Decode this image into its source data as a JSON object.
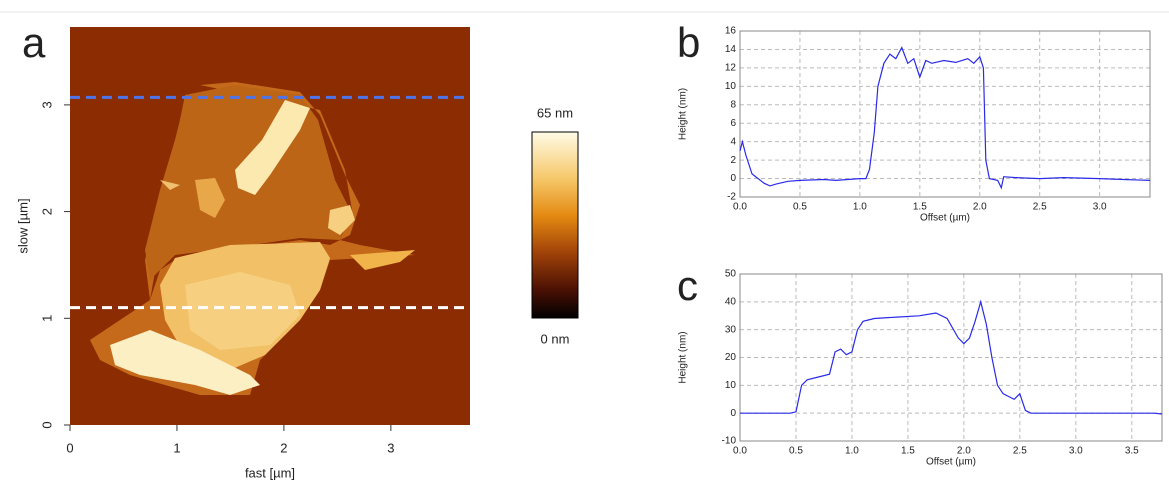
{
  "chart_data": [
    {
      "type": "image",
      "panel_label": "a",
      "x_label": "fast [µm]",
      "y_label": "slow [µm]",
      "xlim": [
        0,
        3.74
      ],
      "ylim": [
        0,
        3.73
      ],
      "xticks": [
        0,
        1,
        2,
        3
      ],
      "yticks": [
        0,
        1,
        2,
        3
      ],
      "colorbar_labels": [
        "65 nm",
        "0 nm"
      ],
      "profile_lines": [
        {
          "y": 3.07,
          "color": "#4f74e8"
        },
        {
          "y": 1.1,
          "color": "#ffffff"
        }
      ]
    },
    {
      "type": "line",
      "panel_label": "b",
      "x_label": "Offset (µm)",
      "y_label": "Height (nm)",
      "grid": true,
      "xlim": [
        0,
        3.42
      ],
      "ylim": [
        -2,
        16
      ],
      "xticks": [
        {
          "value": 0,
          "label": "0.0"
        },
        0.5,
        {
          "value": 1,
          "label": "1.0"
        },
        1.5,
        {
          "value": 2,
          "label": "2.0"
        },
        2.5,
        {
          "value": 3,
          "label": "3.0"
        }
      ],
      "yticks": [
        -2,
        0,
        2,
        4,
        6,
        8,
        10,
        12,
        14,
        16
      ],
      "series": [
        {
          "color": "#2a2ae8",
          "x": [
            0,
            0.02,
            0.05,
            0.1,
            0.2,
            0.25,
            0.3,
            0.4,
            0.5,
            0.7,
            0.8,
            0.9,
            1.0,
            1.05,
            1.08,
            1.12,
            1.15,
            1.2,
            1.25,
            1.3,
            1.35,
            1.4,
            1.45,
            1.5,
            1.55,
            1.6,
            1.7,
            1.8,
            1.9,
            1.95,
            2.0,
            2.03,
            2.05,
            2.08,
            2.15,
            2.18,
            2.2,
            2.3,
            2.5,
            2.7,
            3.0,
            3.2,
            3.42
          ],
          "values": [
            3,
            4,
            2.5,
            0.5,
            -0.5,
            -0.8,
            -0.6,
            -0.3,
            -0.2,
            -0.1,
            -0.2,
            -0.1,
            0,
            0,
            1,
            5,
            10,
            12.5,
            13.5,
            13,
            14.2,
            12.5,
            13,
            11,
            12.8,
            12.5,
            12.8,
            12.6,
            13,
            12.5,
            13.2,
            12,
            2,
            0,
            -0.2,
            -1,
            0.2,
            0.1,
            0,
            0.1,
            0,
            -0.1,
            -0.2
          ]
        }
      ]
    },
    {
      "type": "line",
      "panel_label": "c",
      "x_label": "Offset (µm)",
      "y_label": "Height (nm)",
      "grid": true,
      "xlim": [
        0,
        3.77
      ],
      "ylim": [
        -10,
        50
      ],
      "xticks": [
        {
          "value": 0,
          "label": "0.0"
        },
        0.5,
        {
          "value": 1,
          "label": "1.0"
        },
        1.5,
        {
          "value": 2,
          "label": "2.0"
        },
        2.5,
        {
          "value": 3,
          "label": "3.0"
        },
        3.5
      ],
      "yticks": [
        -10,
        0,
        10,
        20,
        30,
        40,
        50
      ],
      "series": [
        {
          "color": "#2a2ae8",
          "x": [
            0,
            0.2,
            0.45,
            0.5,
            0.55,
            0.6,
            0.7,
            0.8,
            0.85,
            0.9,
            0.95,
            1.0,
            1.05,
            1.1,
            1.2,
            1.4,
            1.6,
            1.75,
            1.85,
            1.95,
            2.0,
            2.05,
            2.1,
            2.15,
            2.2,
            2.25,
            2.3,
            2.35,
            2.4,
            2.45,
            2.5,
            2.55,
            2.6,
            3.0,
            3.5,
            3.7,
            3.77
          ],
          "values": [
            0,
            0,
            0,
            0.5,
            10,
            12,
            13,
            14,
            22,
            23,
            21,
            22,
            30,
            33,
            34,
            34.5,
            35,
            36,
            34,
            27,
            25,
            27,
            33,
            40,
            32,
            20,
            10,
            7,
            6,
            5,
            7,
            1,
            0,
            0,
            0,
            0,
            -0.3
          ]
        }
      ]
    }
  ]
}
